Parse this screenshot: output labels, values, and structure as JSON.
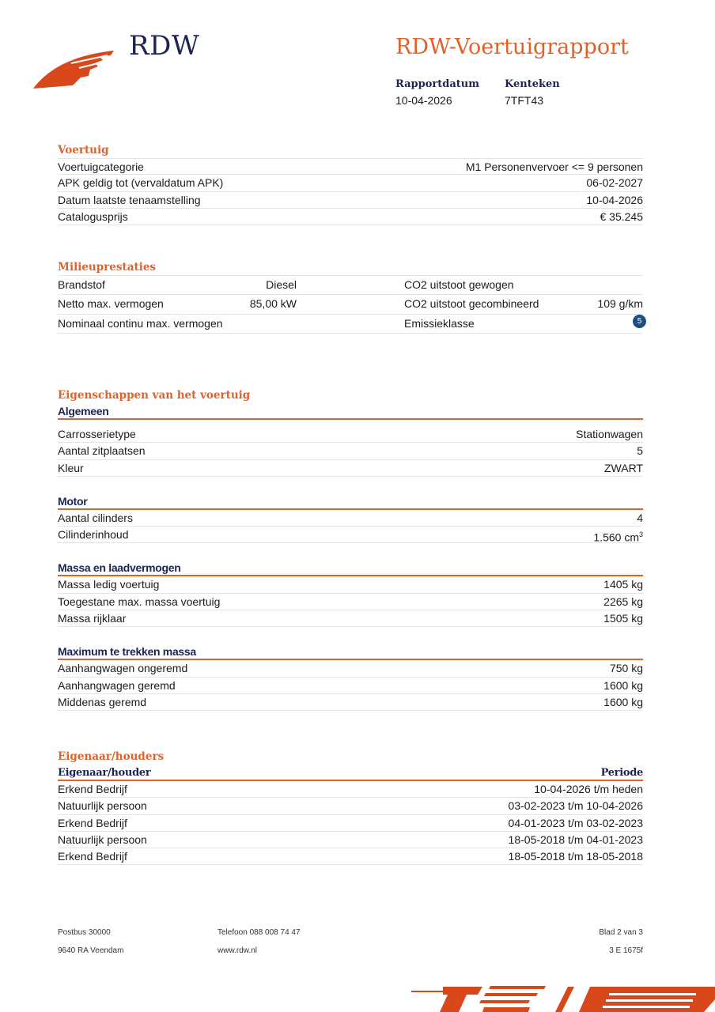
{
  "header": {
    "brand": "RDW",
    "title": "RDW-Voertuigrapport",
    "date_label": "Rapportdatum",
    "date": "10-04-2026",
    "plate_label": "Kenteken",
    "plate": "7TFT43"
  },
  "voertuig": {
    "heading": "Voertuig",
    "rows": [
      {
        "label": "Voertuigcategorie",
        "value": "M1 Personenvervoer <= 9 personen"
      },
      {
        "label": "APK geldig tot (vervaldatum APK)",
        "value": "06-02-2027"
      },
      {
        "label": "Datum laatste tenaamstelling",
        "value": "10-04-2026"
      },
      {
        "label": "Catalogusprijs",
        "value": "€ 35.245"
      }
    ]
  },
  "milieu": {
    "heading": "Milieuprestaties",
    "rows": [
      {
        "l1": "Brandstof",
        "v1": "Diesel",
        "l2": "CO2 uitstoot gewogen",
        "v2": ""
      },
      {
        "l1": "Netto max. vermogen",
        "v1": "85,00 kW",
        "l2": "CO2 uitstoot gecombineerd",
        "v2": "109 g/km"
      },
      {
        "l1": "Nominaal continu max. vermogen",
        "v1": "",
        "l2": "Emissieklasse",
        "v2": "5"
      }
    ]
  },
  "eigenschappen": {
    "heading": "Eigenschappen van het voertuig",
    "algemeen": {
      "title": "Algemeen",
      "rows": [
        {
          "label": "Carrosserietype",
          "value": "Stationwagen"
        },
        {
          "label": "Aantal zitplaatsen",
          "value": "5"
        },
        {
          "label": "Kleur",
          "value": "ZWART"
        }
      ]
    },
    "motor": {
      "title": "Motor",
      "rows": [
        {
          "label": "Aantal cilinders",
          "value": "4"
        },
        {
          "label": "Cilinderinhoud",
          "value": "1.560 cm",
          "sup": "3"
        }
      ]
    },
    "massa": {
      "title": "Massa en laadvermogen",
      "rows": [
        {
          "label": "Massa ledig voertuig",
          "value": "1405 kg"
        },
        {
          "label": "Toegestane max. massa voertuig",
          "value": "2265 kg"
        },
        {
          "label": "Massa rijklaar",
          "value": "1505 kg"
        }
      ]
    },
    "trekken": {
      "title": "Maximum te trekken massa",
      "rows": [
        {
          "label": "Aanhangwagen ongeremd",
          "value": "750 kg"
        },
        {
          "label": "Aanhangwagen geremd",
          "value": "1600 kg"
        },
        {
          "label": "Middenas geremd",
          "value": "1600 kg"
        }
      ]
    }
  },
  "eigenaar": {
    "heading": "Eigenaar/houders",
    "col1": "Eigenaar/houder",
    "col2": "Periode",
    "rows": [
      {
        "label": "Erkend Bedrijf",
        "value": "10-04-2026 t/m heden"
      },
      {
        "label": "Natuurlijk persoon",
        "value": "03-02-2023 t/m 10-04-2026"
      },
      {
        "label": "Erkend Bedrijf",
        "value": "04-01-2023 t/m 03-02-2023"
      },
      {
        "label": "Natuurlijk persoon",
        "value": "18-05-2018 t/m 04-01-2023"
      },
      {
        "label": "Erkend Bedrijf",
        "value": "18-05-2018 t/m 18-05-2018"
      }
    ]
  },
  "footer": {
    "postbus": "Postbus 30000",
    "city": "9640 RA Veendam",
    "phone": "Telefoon 088 008 74 47",
    "web": "www.rdw.nl",
    "page": "Blad 2 van 3",
    "code": "3 E 1675f"
  },
  "colors": {
    "accent": "#e0622a",
    "navy": "#1c2452",
    "badge": "#1d4f86"
  }
}
